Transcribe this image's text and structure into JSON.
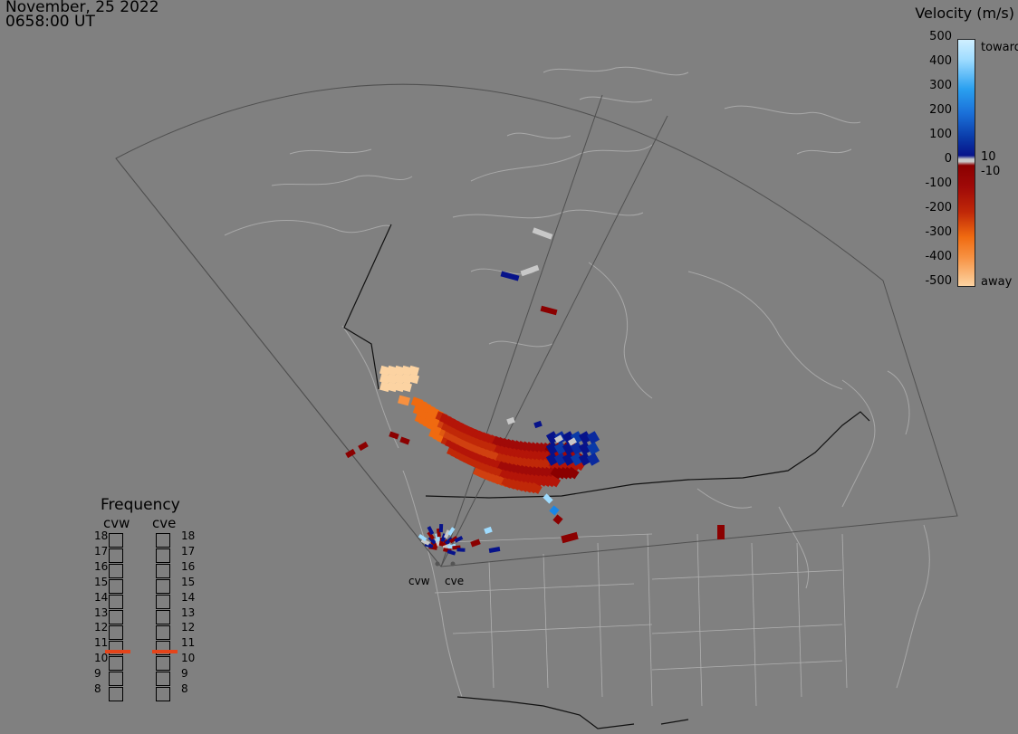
{
  "header": {
    "date": "November, 25 2022",
    "time": "0658:00 UT"
  },
  "legend": {
    "title": "Velocity (m/s)",
    "ticks": [
      "500",
      "400",
      "300",
      "200",
      "100",
      "0",
      "-100",
      "-200",
      "-300",
      "-400",
      "-500"
    ],
    "toward_label": "toward",
    "away_label": "away",
    "mid_pos": "10",
    "mid_neg": "-10",
    "colors": {
      "toward_light": "#cfefff",
      "toward_mid": "#1a86e6",
      "toward_dark": "#07138a",
      "gap": "#c8c8c8",
      "away_dark": "#8b0000",
      "away_mid": "#f06a10",
      "away_light": "#fcd3a2"
    }
  },
  "frequency": {
    "title": "Frequency",
    "columns": [
      "cvw",
      "cve"
    ],
    "levels": [
      "18",
      "17",
      "16",
      "15",
      "14",
      "13",
      "12",
      "11",
      "10",
      "9",
      "8"
    ],
    "cvw_mhz": 10.8,
    "cve_mhz": 10.8,
    "marker_color": "#e4441a"
  },
  "sites": [
    {
      "name": "cvw"
    },
    {
      "name": "cve"
    }
  ]
}
